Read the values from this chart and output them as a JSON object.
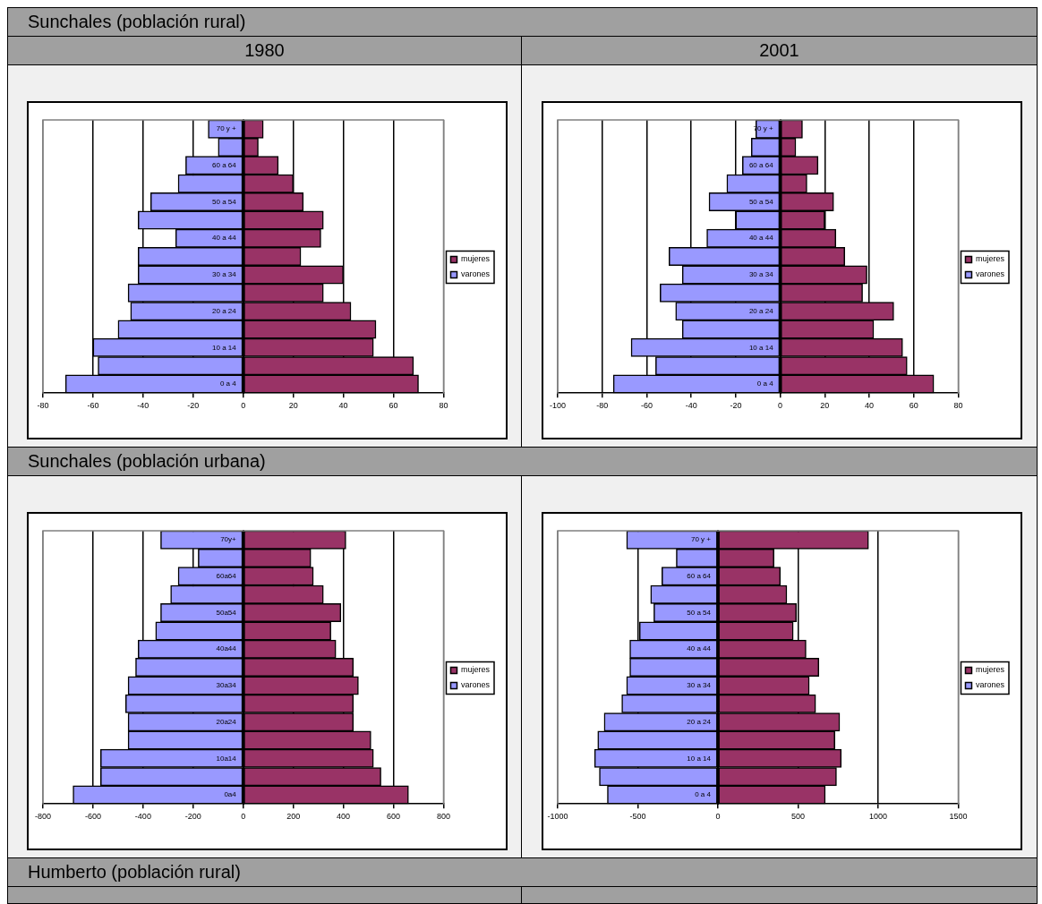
{
  "chart_data": [
    {
      "type": "bar",
      "orientation": "horizontal",
      "title": "Sunchales (población rural)",
      "subtitle": "1980",
      "categories": [
        "70 y +",
        null,
        "60 a 64",
        null,
        "50 a 54",
        null,
        "40 a 44",
        null,
        "30 a 34",
        null,
        "20 a 24",
        null,
        "10 a 14",
        null,
        "0 a 4"
      ],
      "series": [
        {
          "name": "mujeres",
          "color": "#993366",
          "values": [
            8,
            6,
            14,
            20,
            24,
            32,
            31,
            23,
            40,
            32,
            43,
            53,
            52,
            68,
            70
          ]
        },
        {
          "name": "varones",
          "color": "#9999ff",
          "values": [
            -14,
            -10,
            -23,
            -26,
            -37,
            -42,
            -27,
            -42,
            -42,
            -46,
            -45,
            -50,
            -60,
            -58,
            -71
          ]
        }
      ],
      "xlim": [
        -80,
        80
      ],
      "xticks": [
        -80,
        -60,
        -40,
        -20,
        0,
        20,
        40,
        60,
        80
      ],
      "grid": "x",
      "legend": "right",
      "stacked": true
    },
    {
      "type": "bar",
      "orientation": "horizontal",
      "subtitle": "2001",
      "categories": [
        "70 y +",
        null,
        "60 a 64",
        null,
        "50 a 54",
        null,
        "40 a 44",
        null,
        "30 a 34",
        null,
        "20 a 24",
        null,
        "10 a 14",
        null,
        "0 a 4"
      ],
      "series": [
        {
          "name": "mujeres",
          "color": "#993366",
          "values": [
            10,
            7,
            17,
            12,
            24,
            20,
            25,
            29,
            39,
            37,
            51,
            42,
            55,
            57,
            69
          ]
        },
        {
          "name": "varones",
          "color": "#9999ff",
          "values": [
            -11,
            -13,
            -17,
            -24,
            -32,
            -20,
            -33,
            -50,
            -44,
            -54,
            -47,
            -44,
            -67,
            -56,
            -75
          ]
        }
      ],
      "xlim": [
        -100,
        80
      ],
      "xticks": [
        -100,
        -80,
        -60,
        -40,
        -20,
        0,
        20,
        40,
        60,
        80
      ],
      "grid": "x",
      "legend": "right",
      "stacked": true
    },
    {
      "type": "bar",
      "orientation": "horizontal",
      "title": "Sunchales (población urbana)",
      "categories": [
        "70y+",
        null,
        "60a64",
        null,
        "50a54",
        null,
        "40a44",
        null,
        "30a34",
        null,
        "20a24",
        null,
        "10a14",
        null,
        "0a4"
      ],
      "series": [
        {
          "name": "mujeres",
          "color": "#993366",
          "values": [
            410,
            270,
            280,
            320,
            390,
            350,
            370,
            440,
            460,
            440,
            440,
            510,
            520,
            550,
            660
          ]
        },
        {
          "name": "varones",
          "color": "#9999ff",
          "values": [
            -330,
            -180,
            -260,
            -290,
            -330,
            -350,
            -420,
            -430,
            -460,
            -470,
            -460,
            -460,
            -570,
            -570,
            -680
          ]
        }
      ],
      "xlim": [
        -800,
        800
      ],
      "xticks": [
        -800,
        -600,
        -400,
        -200,
        0,
        200,
        400,
        600,
        800
      ],
      "grid": "x",
      "legend": "right",
      "stacked": true
    },
    {
      "type": "bar",
      "orientation": "horizontal",
      "categories": [
        "70 y +",
        null,
        "60 a 64",
        null,
        "50 a 54",
        null,
        "40 a 44",
        null,
        "30 a 34",
        null,
        "20 a 24",
        null,
        "10 a 14",
        null,
        "0 a 4"
      ],
      "series": [
        {
          "name": "mujeres",
          "color": "#993366",
          "values": [
            940,
            350,
            390,
            430,
            490,
            470,
            550,
            630,
            570,
            610,
            760,
            730,
            770,
            740,
            670
          ]
        },
        {
          "name": "varones",
          "color": "#9999ff",
          "values": [
            -570,
            -260,
            -350,
            -420,
            -400,
            -490,
            -550,
            -550,
            -570,
            -600,
            -710,
            -750,
            -770,
            -740,
            -690
          ]
        }
      ],
      "xlim": [
        -1000,
        1500
      ],
      "xticks": [
        -1000,
        -500,
        0,
        500,
        1000,
        1500
      ],
      "grid": "x",
      "legend": "right",
      "stacked": true,
      "annotations": [
        "Humberto (población rural)"
      ]
    }
  ]
}
